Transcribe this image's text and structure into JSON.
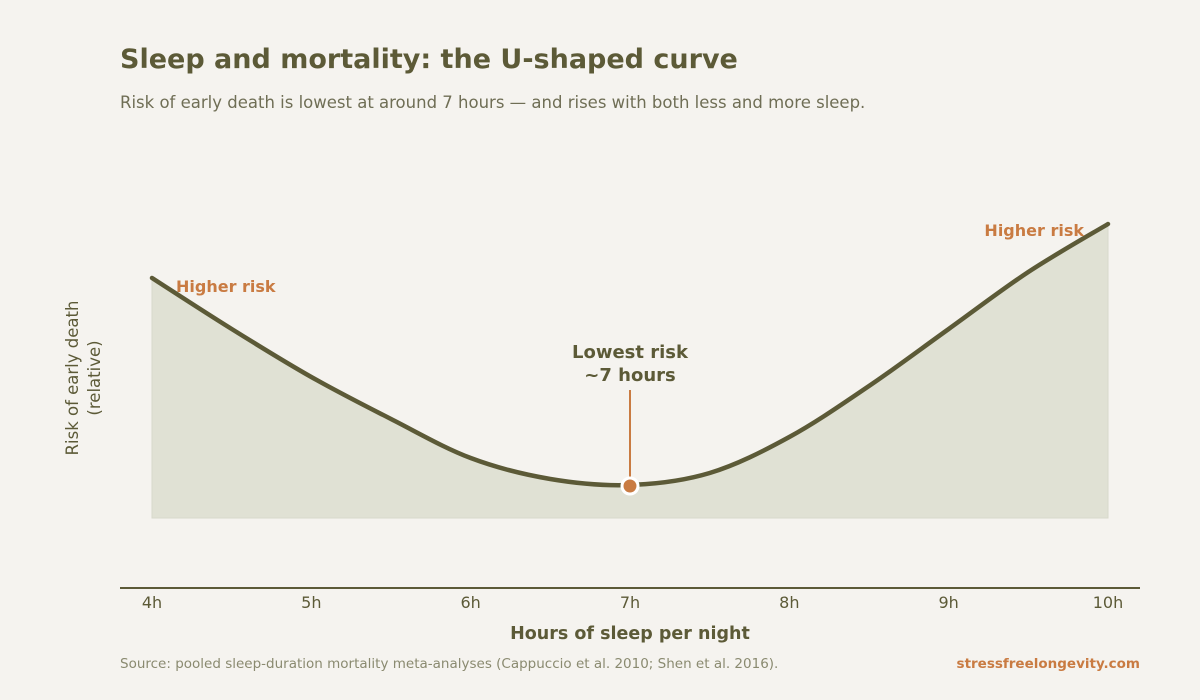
{
  "header": {
    "title": "Sleep and mortality: the U-shaped curve",
    "subtitle": "Risk of early death is lowest at around 7 hours — and rises with both less and more sleep."
  },
  "footer": {
    "source": "Source: pooled sleep-duration mortality meta-analyses (Cappuccio et al. 2010; Shen et al. 2016).",
    "brand": "stressfreelongevity.com"
  },
  "colors": {
    "line": "#5c5a37",
    "fill": "#e0e1d4",
    "accent": "#c97b42",
    "background": "#f5f3ef"
  },
  "chart_data": {
    "type": "area",
    "title": "Sleep and mortality: the U-shaped curve",
    "xlabel": "Hours of sleep per night",
    "ylabel_lines": [
      "Risk of early death",
      "(relative)"
    ],
    "x_ticks": [
      4,
      5,
      6,
      7,
      8,
      9,
      10
    ],
    "x_tick_labels": [
      "4h",
      "5h",
      "6h",
      "7h",
      "8h",
      "9h",
      "10h"
    ],
    "xlim": [
      4,
      10
    ],
    "ylim": [
      0,
      1
    ],
    "grid": false,
    "series": [
      {
        "x": [
          4.0,
          4.5,
          5.0,
          5.5,
          6.0,
          6.5,
          7.0,
          7.5,
          8.0,
          8.5,
          9.0,
          9.5,
          10.0
        ],
        "values": [
          0.8,
          0.63,
          0.47,
          0.33,
          0.2,
          0.13,
          0.11,
          0.15,
          0.27,
          0.44,
          0.63,
          0.82,
          0.98
        ]
      }
    ],
    "annotations": {
      "minimum": {
        "x": 7,
        "y": 0.11,
        "label_lines": [
          "Lowest risk",
          "~7 hours"
        ]
      },
      "left_label": "Higher risk",
      "right_label": "Higher risk"
    }
  }
}
